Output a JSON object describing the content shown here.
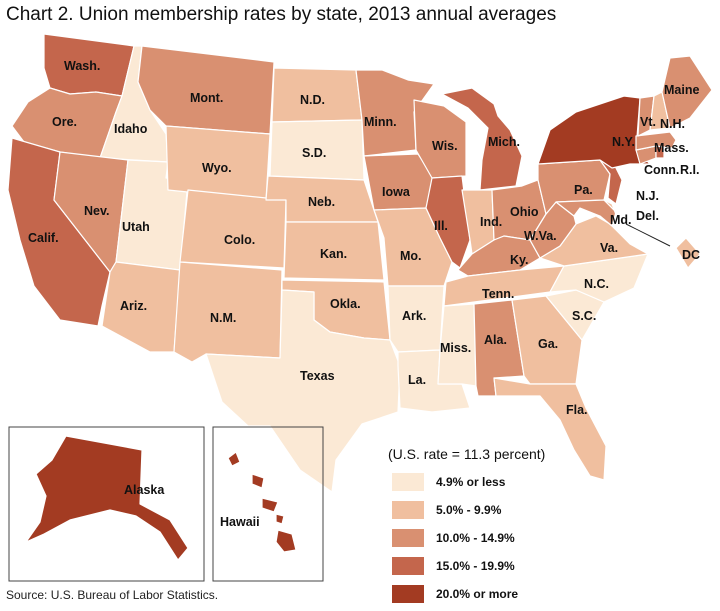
{
  "title": "Chart 2. Union membership rates by state, 2013 annual averages",
  "source": "Source: U.S. Bureau of Labor Statistics.",
  "legend": {
    "title": "(U.S. rate = 11.3 percent)",
    "bins": [
      {
        "label": "4.9% or less",
        "color": "#fbe9d5"
      },
      {
        "label": "5.0% - 9.9%",
        "color": "#f0bf9f"
      },
      {
        "label": "10.0% - 14.9%",
        "color": "#d99071"
      },
      {
        "label": "15.0% - 19.9%",
        "color": "#c4664c"
      },
      {
        "label": "20.0% or more",
        "color": "#a33b22"
      }
    ]
  },
  "states": {
    "wa": {
      "label": "Wash.",
      "bin": 3
    },
    "or": {
      "label": "Ore.",
      "bin": 2
    },
    "ca": {
      "label": "Calif.",
      "bin": 3
    },
    "id": {
      "label": "Idaho",
      "bin": 0
    },
    "nv": {
      "label": "Nev.",
      "bin": 2
    },
    "ut": {
      "label": "Utah",
      "bin": 0
    },
    "az": {
      "label": "Ariz.",
      "bin": 1
    },
    "mt": {
      "label": "Mont.",
      "bin": 2
    },
    "wy": {
      "label": "Wyo.",
      "bin": 1
    },
    "co": {
      "label": "Colo.",
      "bin": 1
    },
    "nm": {
      "label": "N.M.",
      "bin": 1
    },
    "nd": {
      "label": "N.D.",
      "bin": 1
    },
    "sd": {
      "label": "S.D.",
      "bin": 0
    },
    "ne": {
      "label": "Neb.",
      "bin": 1
    },
    "ks": {
      "label": "Kan.",
      "bin": 1
    },
    "ok": {
      "label": "Okla.",
      "bin": 1
    },
    "tx": {
      "label": "Texas",
      "bin": 0
    },
    "mn": {
      "label": "Minn.",
      "bin": 2
    },
    "ia": {
      "label": "Iowa",
      "bin": 2
    },
    "mo": {
      "label": "Mo.",
      "bin": 1
    },
    "ar": {
      "label": "Ark.",
      "bin": 0
    },
    "la": {
      "label": "La.",
      "bin": 0
    },
    "wi": {
      "label": "Wis.",
      "bin": 2
    },
    "il": {
      "label": "Ill.",
      "bin": 3
    },
    "mi": {
      "label": "Mich.",
      "bin": 3
    },
    "in": {
      "label": "Ind.",
      "bin": 1
    },
    "oh": {
      "label": "Ohio",
      "bin": 2
    },
    "ky": {
      "label": "Ky.",
      "bin": 2
    },
    "tn": {
      "label": "Tenn.",
      "bin": 1
    },
    "ms": {
      "label": "Miss.",
      "bin": 0
    },
    "al": {
      "label": "Ala.",
      "bin": 2
    },
    "ga": {
      "label": "Ga.",
      "bin": 1
    },
    "fl": {
      "label": "Fla.",
      "bin": 1
    },
    "sc": {
      "label": "S.C.",
      "bin": 0
    },
    "nc": {
      "label": "N.C.",
      "bin": 0
    },
    "va": {
      "label": "Va.",
      "bin": 1
    },
    "wv": {
      "label": "W.Va.",
      "bin": 2
    },
    "pa": {
      "label": "Pa.",
      "bin": 2
    },
    "ny": {
      "label": "N.Y.",
      "bin": 4
    },
    "nj": {
      "label": "N.J.",
      "bin": 3
    },
    "md": {
      "label": "Md.",
      "bin": 2
    },
    "de": {
      "label": "Del.",
      "bin": 1
    },
    "dc": {
      "label": "DC",
      "bin": 1
    },
    "ct": {
      "label": "Conn.",
      "bin": 2
    },
    "ri": {
      "label": "R.I.",
      "bin": 3
    },
    "ma": {
      "label": "Mass.",
      "bin": 2
    },
    "vt": {
      "label": "Vt.",
      "bin": 2
    },
    "nh": {
      "label": "N.H.",
      "bin": 1
    },
    "me": {
      "label": "Maine",
      "bin": 2
    },
    "ak": {
      "label": "Alaska",
      "bin": 4
    },
    "hi": {
      "label": "Hawaii",
      "bin": 4
    }
  }
}
